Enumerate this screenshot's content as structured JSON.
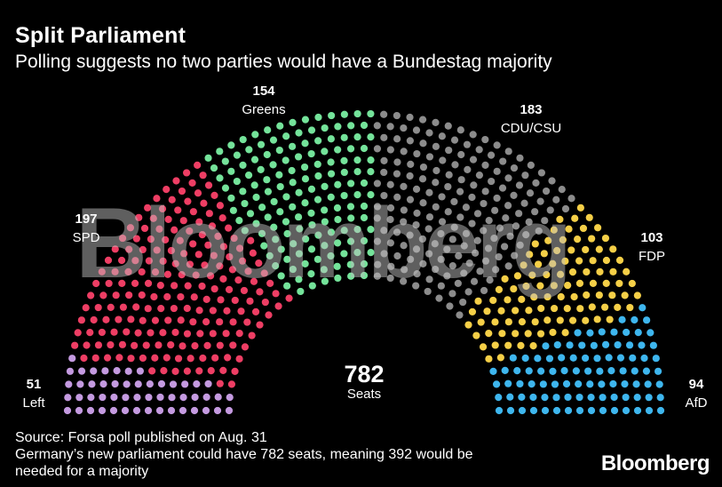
{
  "header": {
    "title": "Split Parliament",
    "subtitle": "Polling suggests no two parties would have a Bundestag majority"
  },
  "chart_data": {
    "type": "parliament",
    "title": "Split Parliament",
    "subtitle": "Polling suggests no two parties would have a Bundestag majority",
    "total_seats": 782,
    "total_label": "782",
    "total_unit": "Seats",
    "majority_needed": 392,
    "parties": [
      {
        "name": "Left",
        "seats": 51,
        "seats_label": "51",
        "color": "#c49ae0"
      },
      {
        "name": "SPD",
        "seats": 197,
        "seats_label": "197",
        "color": "#ee3e64"
      },
      {
        "name": "Greens",
        "seats": 154,
        "seats_label": "154",
        "color": "#74e39a"
      },
      {
        "name": "CDU/CSU",
        "seats": 183,
        "seats_label": "183",
        "color": "#8c8c8c"
      },
      {
        "name": "FDP",
        "seats": 103,
        "seats_label": "103",
        "color": "#f5cf47"
      },
      {
        "name": "AfD",
        "seats": 94,
        "seats_label": "94",
        "color": "#3eb6ee"
      }
    ]
  },
  "watermark": {
    "text": "Bloomberg"
  },
  "footer": {
    "source": "Source: Forsa poll published on Aug. 31",
    "note_line1": "Germany’s new parliament could have 782 seats, meaning 392 would be",
    "note_line2": "needed for a majority",
    "brand": "Bloomberg"
  }
}
